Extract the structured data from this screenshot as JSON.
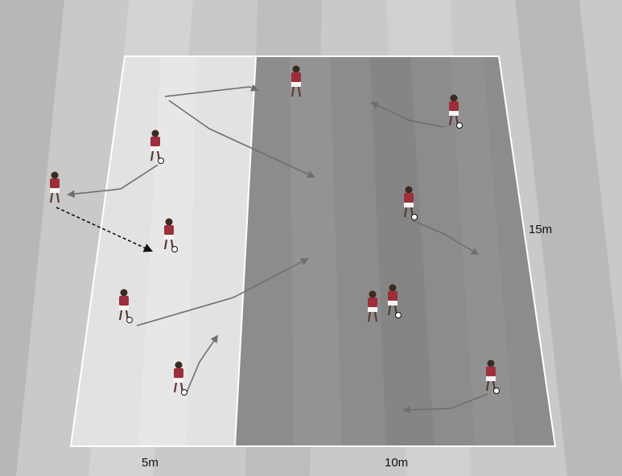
{
  "diagram": {
    "labels": {
      "width_left": "5m",
      "width_right": "10m",
      "length": "15m"
    },
    "zones": [
      {
        "name": "outer-zone",
        "color": "#e2e2e2"
      },
      {
        "name": "inner-zone",
        "color": "#8a8a8a"
      }
    ],
    "colors": {
      "line": "#ffffff",
      "player_shirt": "#9c2f3a",
      "player_shorts": "#f4f4f4",
      "dribble_path": "#6f6f6f",
      "pass_arrow": "#111111"
    },
    "players": [
      {
        "id": "p1",
        "ball": false
      },
      {
        "id": "p2",
        "ball": true
      },
      {
        "id": "p3",
        "ball": false
      },
      {
        "id": "p4",
        "ball": true
      },
      {
        "id": "p5",
        "ball": true
      },
      {
        "id": "p6",
        "ball": true
      },
      {
        "id": "p7",
        "ball": true
      },
      {
        "id": "p8",
        "ball": true
      },
      {
        "id": "p9",
        "ball": false
      },
      {
        "id": "p10",
        "ball": true
      },
      {
        "id": "p11",
        "ball": true
      }
    ]
  }
}
